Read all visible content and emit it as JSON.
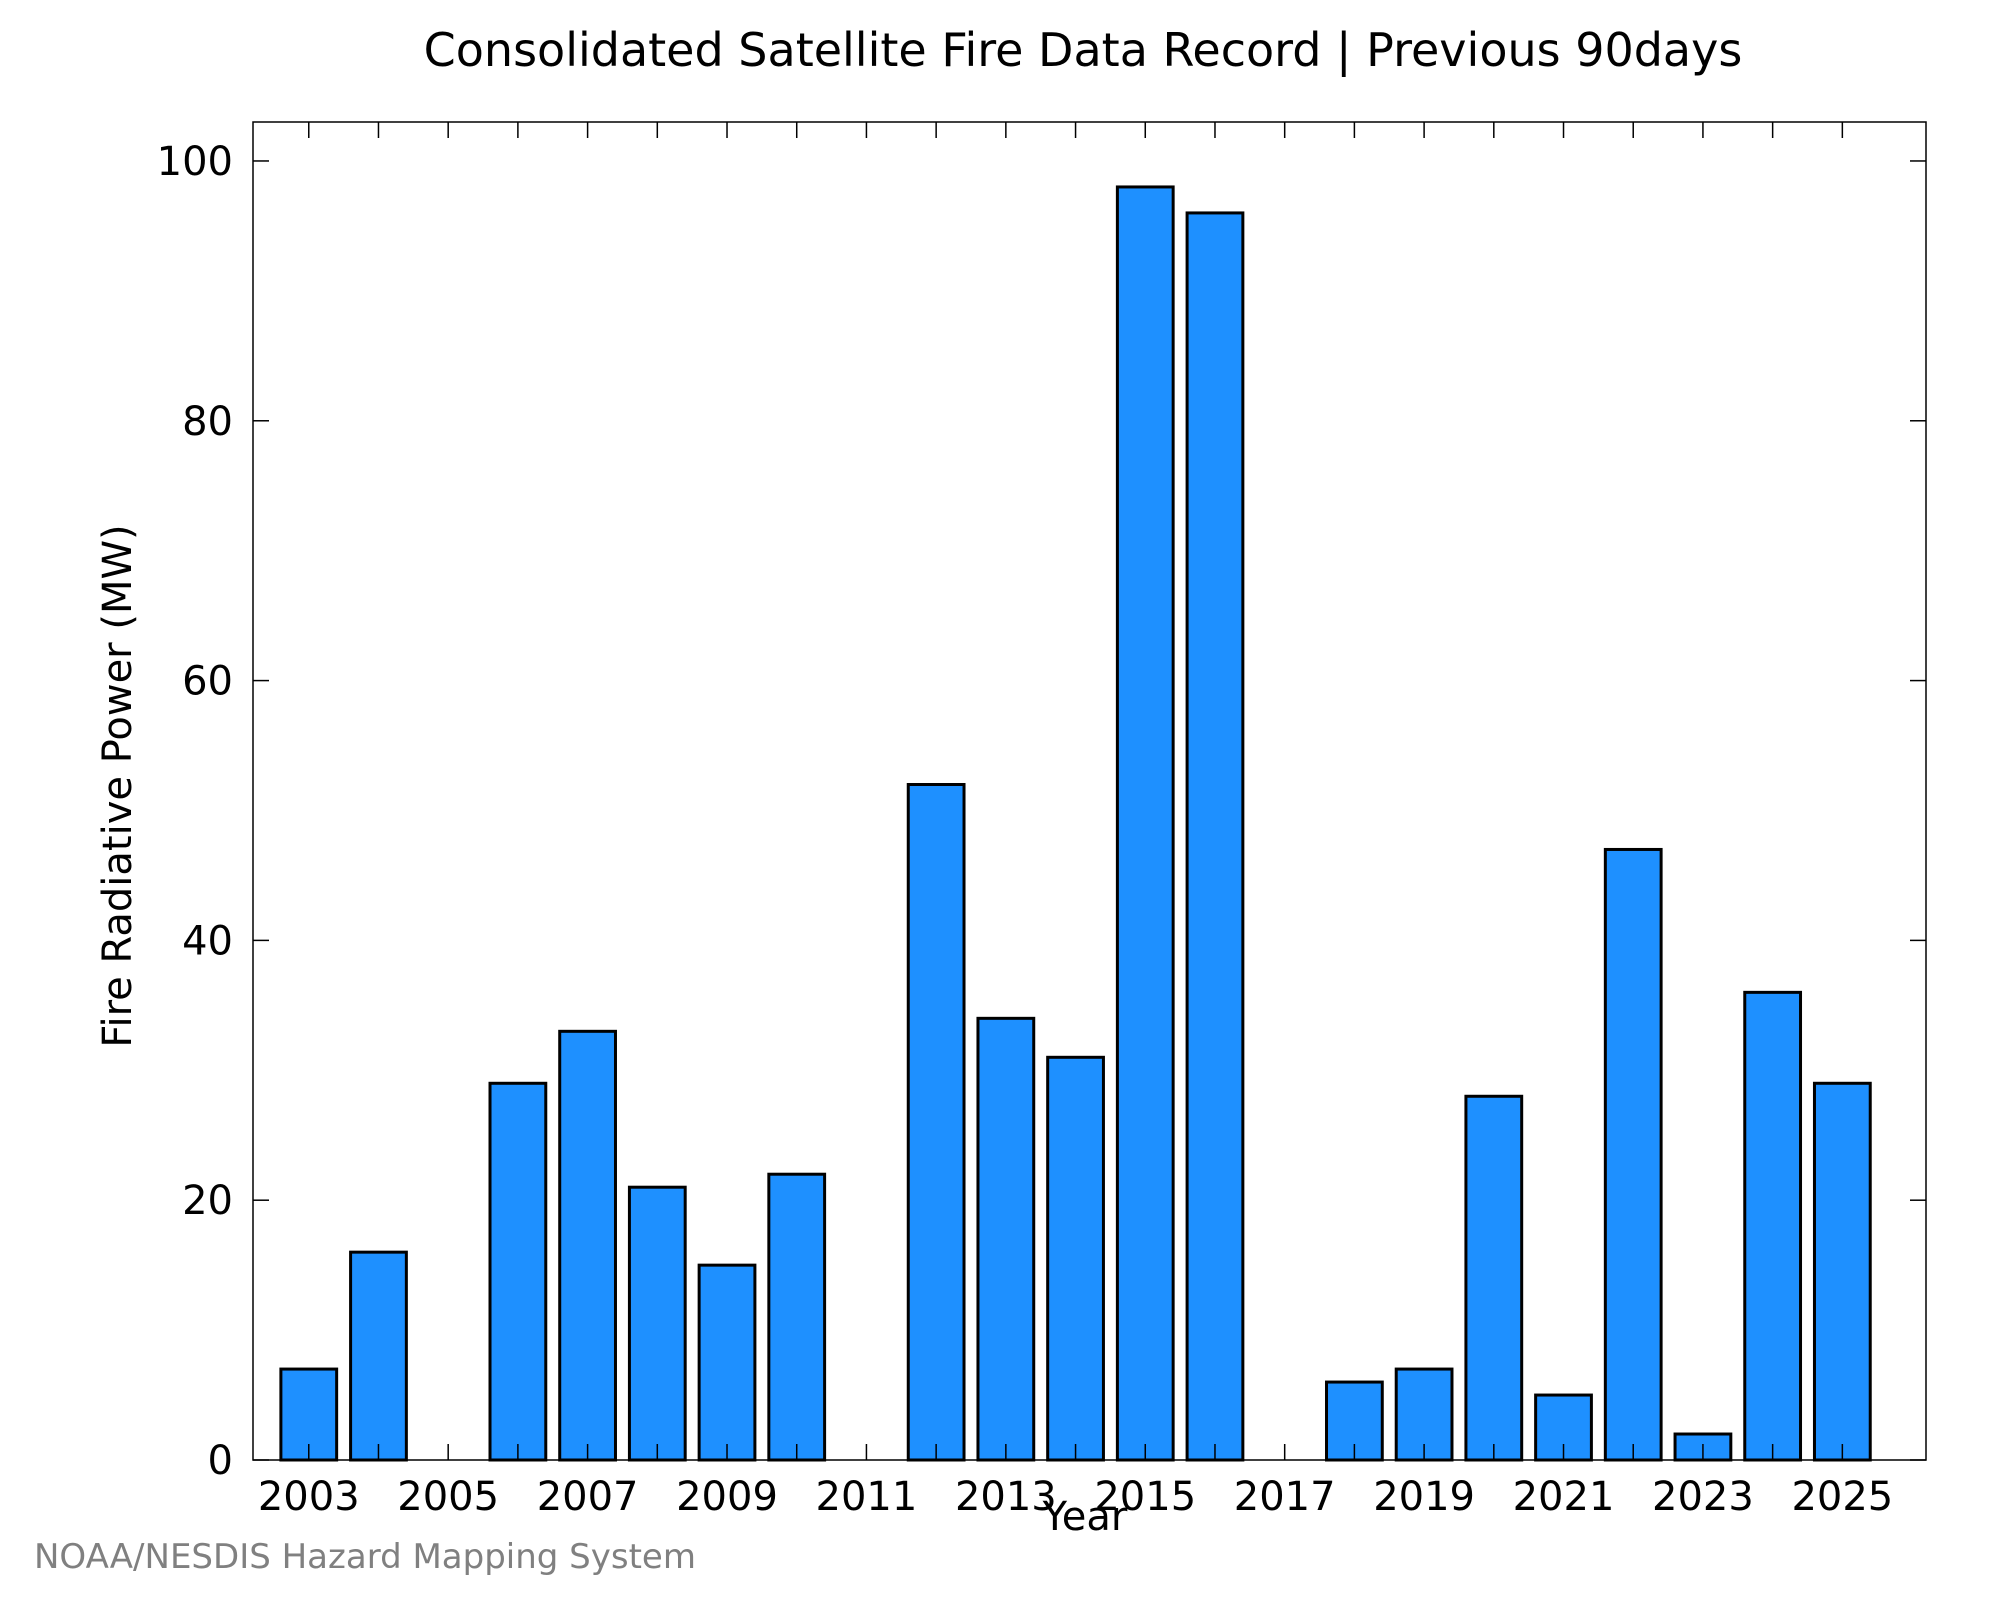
{
  "chart_data": {
    "type": "bar",
    "title": "Consolidated Satellite Fire Data Record | Previous 90days",
    "xlabel": "Year",
    "ylabel": "Fire Radiative Power (MW)",
    "categories": [
      "2003",
      "2004",
      "2005",
      "2006",
      "2007",
      "2008",
      "2009",
      "2010",
      "2011",
      "2012",
      "2013",
      "2014",
      "2015",
      "2016",
      "2017",
      "2018",
      "2019",
      "2020",
      "2021",
      "2022",
      "2023",
      "2024",
      "2025"
    ],
    "values": [
      7,
      16,
      0,
      29,
      33,
      21,
      15,
      22,
      0,
      52,
      34,
      31,
      98,
      96,
      0,
      6,
      7,
      28,
      5,
      47,
      2,
      36,
      29
    ],
    "x_tick_labels": [
      "2003",
      "2005",
      "2007",
      "2009",
      "2011",
      "2013",
      "2015",
      "2017",
      "2019",
      "2021",
      "2023",
      "2025"
    ],
    "y_ticks": [
      0,
      20,
      40,
      60,
      80,
      100
    ],
    "ylim": [
      0,
      103
    ],
    "xlim": [
      2002.2,
      2026.2
    ],
    "bar_color": "#1e90ff",
    "bar_edge_color": "#000000",
    "grid": false,
    "legend": "none"
  },
  "credit": "NOAA/NESDIS Hazard Mapping System"
}
